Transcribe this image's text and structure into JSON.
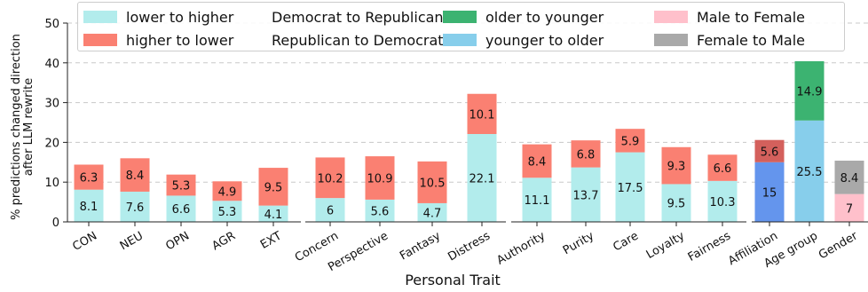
{
  "chart_data": {
    "type": "bar",
    "stacked": true,
    "xlabel": "Personal Trait",
    "ylabel": [
      "% predictions changed direction",
      "after LLM rewrite"
    ],
    "ylim": [
      0,
      50
    ],
    "yticks": [
      0,
      10,
      20,
      30,
      40,
      50
    ],
    "grid": "horizontal dashed",
    "legend_position": "top",
    "groups": [
      {
        "categories": [
          "CON",
          "NEU",
          "OPN",
          "AGR",
          "EXT"
        ],
        "bars": [
          {
            "category": "CON",
            "segments": [
              {
                "series": "lower to higher",
                "value": 8.1
              },
              {
                "series": "higher to lower",
                "value": 6.3
              }
            ]
          },
          {
            "category": "NEU",
            "segments": [
              {
                "series": "lower to higher",
                "value": 7.6
              },
              {
                "series": "higher to lower",
                "value": 8.4
              }
            ]
          },
          {
            "category": "OPN",
            "segments": [
              {
                "series": "lower to higher",
                "value": 6.6
              },
              {
                "series": "higher to lower",
                "value": 5.3
              }
            ]
          },
          {
            "category": "AGR",
            "segments": [
              {
                "series": "lower to higher",
                "value": 5.3
              },
              {
                "series": "higher to lower",
                "value": 4.9
              }
            ]
          },
          {
            "category": "EXT",
            "segments": [
              {
                "series": "lower to higher",
                "value": 4.1
              },
              {
                "series": "higher to lower",
                "value": 9.5
              }
            ]
          }
        ]
      },
      {
        "categories": [
          "Concern",
          "Perspective",
          "Fantasy",
          "Distress"
        ],
        "bars": [
          {
            "category": "Concern",
            "segments": [
              {
                "series": "lower to higher",
                "value": 6
              },
              {
                "series": "higher to lower",
                "value": 10.2
              }
            ]
          },
          {
            "category": "Perspective",
            "segments": [
              {
                "series": "lower to higher",
                "value": 5.6
              },
              {
                "series": "higher to lower",
                "value": 10.9
              }
            ]
          },
          {
            "category": "Fantasy",
            "segments": [
              {
                "series": "lower to higher",
                "value": 4.7
              },
              {
                "series": "higher to lower",
                "value": 10.5
              }
            ]
          },
          {
            "category": "Distress",
            "segments": [
              {
                "series": "lower to higher",
                "value": 22.1
              },
              {
                "series": "higher to lower",
                "value": 10.1
              }
            ]
          }
        ]
      },
      {
        "categories": [
          "Authority",
          "Purity",
          "Care",
          "Loyalty",
          "Fairness"
        ],
        "bars": [
          {
            "category": "Authority",
            "segments": [
              {
                "series": "lower to higher",
                "value": 11.1
              },
              {
                "series": "higher to lower",
                "value": 8.4
              }
            ]
          },
          {
            "category": "Purity",
            "segments": [
              {
                "series": "lower to higher",
                "value": 13.7
              },
              {
                "series": "higher to lower",
                "value": 6.8
              }
            ]
          },
          {
            "category": "Care",
            "segments": [
              {
                "series": "lower to higher",
                "value": 17.5
              },
              {
                "series": "higher to lower",
                "value": 5.9
              }
            ]
          },
          {
            "category": "Loyalty",
            "segments": [
              {
                "series": "lower to higher",
                "value": 9.5
              },
              {
                "series": "higher to lower",
                "value": 9.3
              }
            ]
          },
          {
            "category": "Fairness",
            "segments": [
              {
                "series": "lower to higher",
                "value": 10.3
              },
              {
                "series": "higher to lower",
                "value": 6.6
              }
            ]
          }
        ]
      },
      {
        "categories": [
          "Affiliation",
          "Age group",
          "Gender"
        ],
        "bars": [
          {
            "category": "Affiliation",
            "segments": [
              {
                "series": "Republican to Democrat",
                "value": 15
              },
              {
                "series": "Democrat to Republican",
                "value": 5.6
              }
            ]
          },
          {
            "category": "Age group",
            "segments": [
              {
                "series": "younger to older",
                "value": 25.5
              },
              {
                "series": "older to younger",
                "value": 14.9
              }
            ]
          },
          {
            "category": "Gender",
            "segments": [
              {
                "series": "Male to Female",
                "value": 7
              },
              {
                "series": "Female to Male",
                "value": 8.4
              }
            ]
          }
        ]
      }
    ],
    "legend": [
      {
        "name": "lower to higher",
        "color": "#b2ecec"
      },
      {
        "name": "higher to lower",
        "color": "#fa8072"
      },
      {
        "name": "Democrat to Republican",
        "color": "#d4605c"
      },
      {
        "name": "Republican to Democrat",
        "color": "#6495ed"
      },
      {
        "name": "older to younger",
        "color": "#3cb371"
      },
      {
        "name": "younger to older",
        "color": "#87ceeb"
      },
      {
        "name": "Male to Female",
        "color": "#ffc0cb"
      },
      {
        "name": "Female to Male",
        "color": "#a9a9a9"
      }
    ]
  }
}
